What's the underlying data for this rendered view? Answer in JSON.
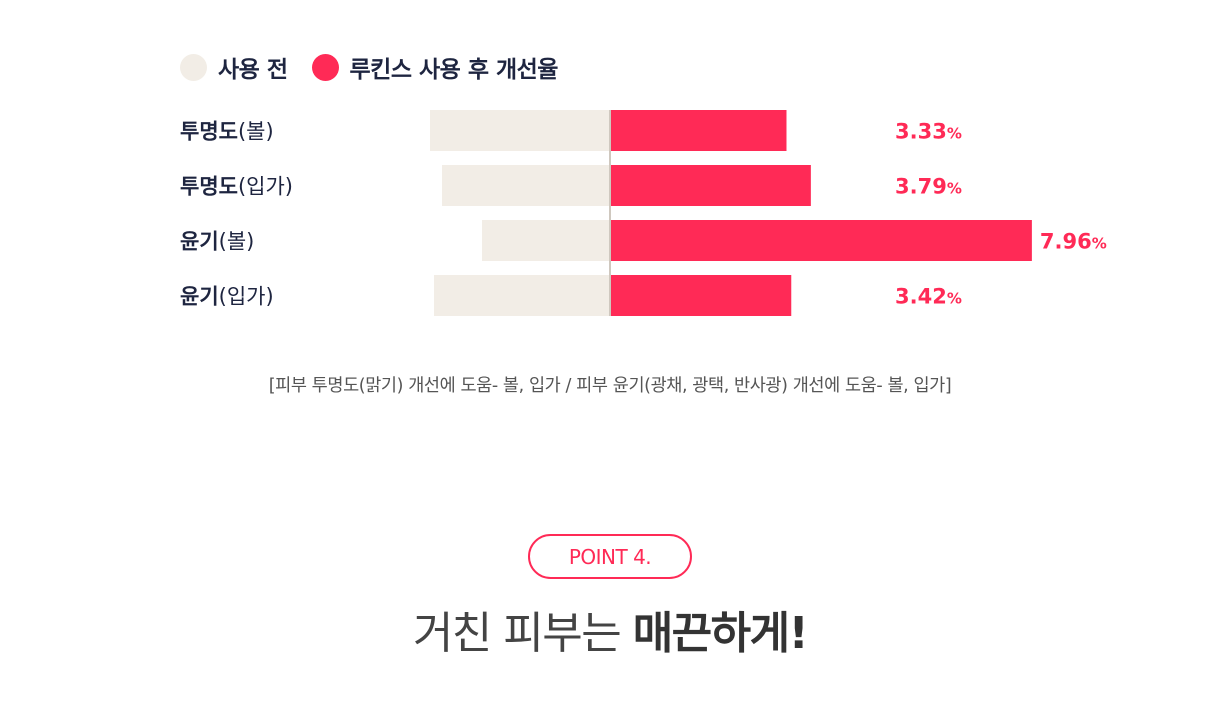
{
  "legend": {
    "before_label": "사용 전",
    "after_label": "루킨스 사용 후 개선율",
    "before_color": "#f2ede6",
    "after_color": "#ff2a56"
  },
  "chart_data": {
    "type": "bar",
    "orientation": "horizontal",
    "categories": [
      {
        "bold": "투명도",
        "light": "(볼)"
      },
      {
        "bold": "투명도",
        "light": "(입가)"
      },
      {
        "bold": "윤기",
        "light": "(볼)"
      },
      {
        "bold": "윤기",
        "light": "(입가)"
      }
    ],
    "series": [
      {
        "name": "사용 전",
        "color": "#f2ede6"
      },
      {
        "name": "루킨스 사용 후 개선율",
        "color": "#ff2a56",
        "values": [
          3.33,
          3.79,
          7.96,
          3.42
        ]
      }
    ],
    "value_labels": [
      "3.33",
      "3.79",
      "7.96",
      "3.42"
    ],
    "unit": "%",
    "before_relative": [
      0.45,
      0.42,
      0.32,
      0.44
    ]
  },
  "caption": "[피부 투명도(맑기) 개선에 도움- 볼, 입가 / 피부 윤기(광채, 광택, 반사광) 개선에 도움- 볼, 입가]",
  "badge": "POINT 4.",
  "headline": {
    "light": "거친 피부는 ",
    "bold": "매끈하게!"
  }
}
